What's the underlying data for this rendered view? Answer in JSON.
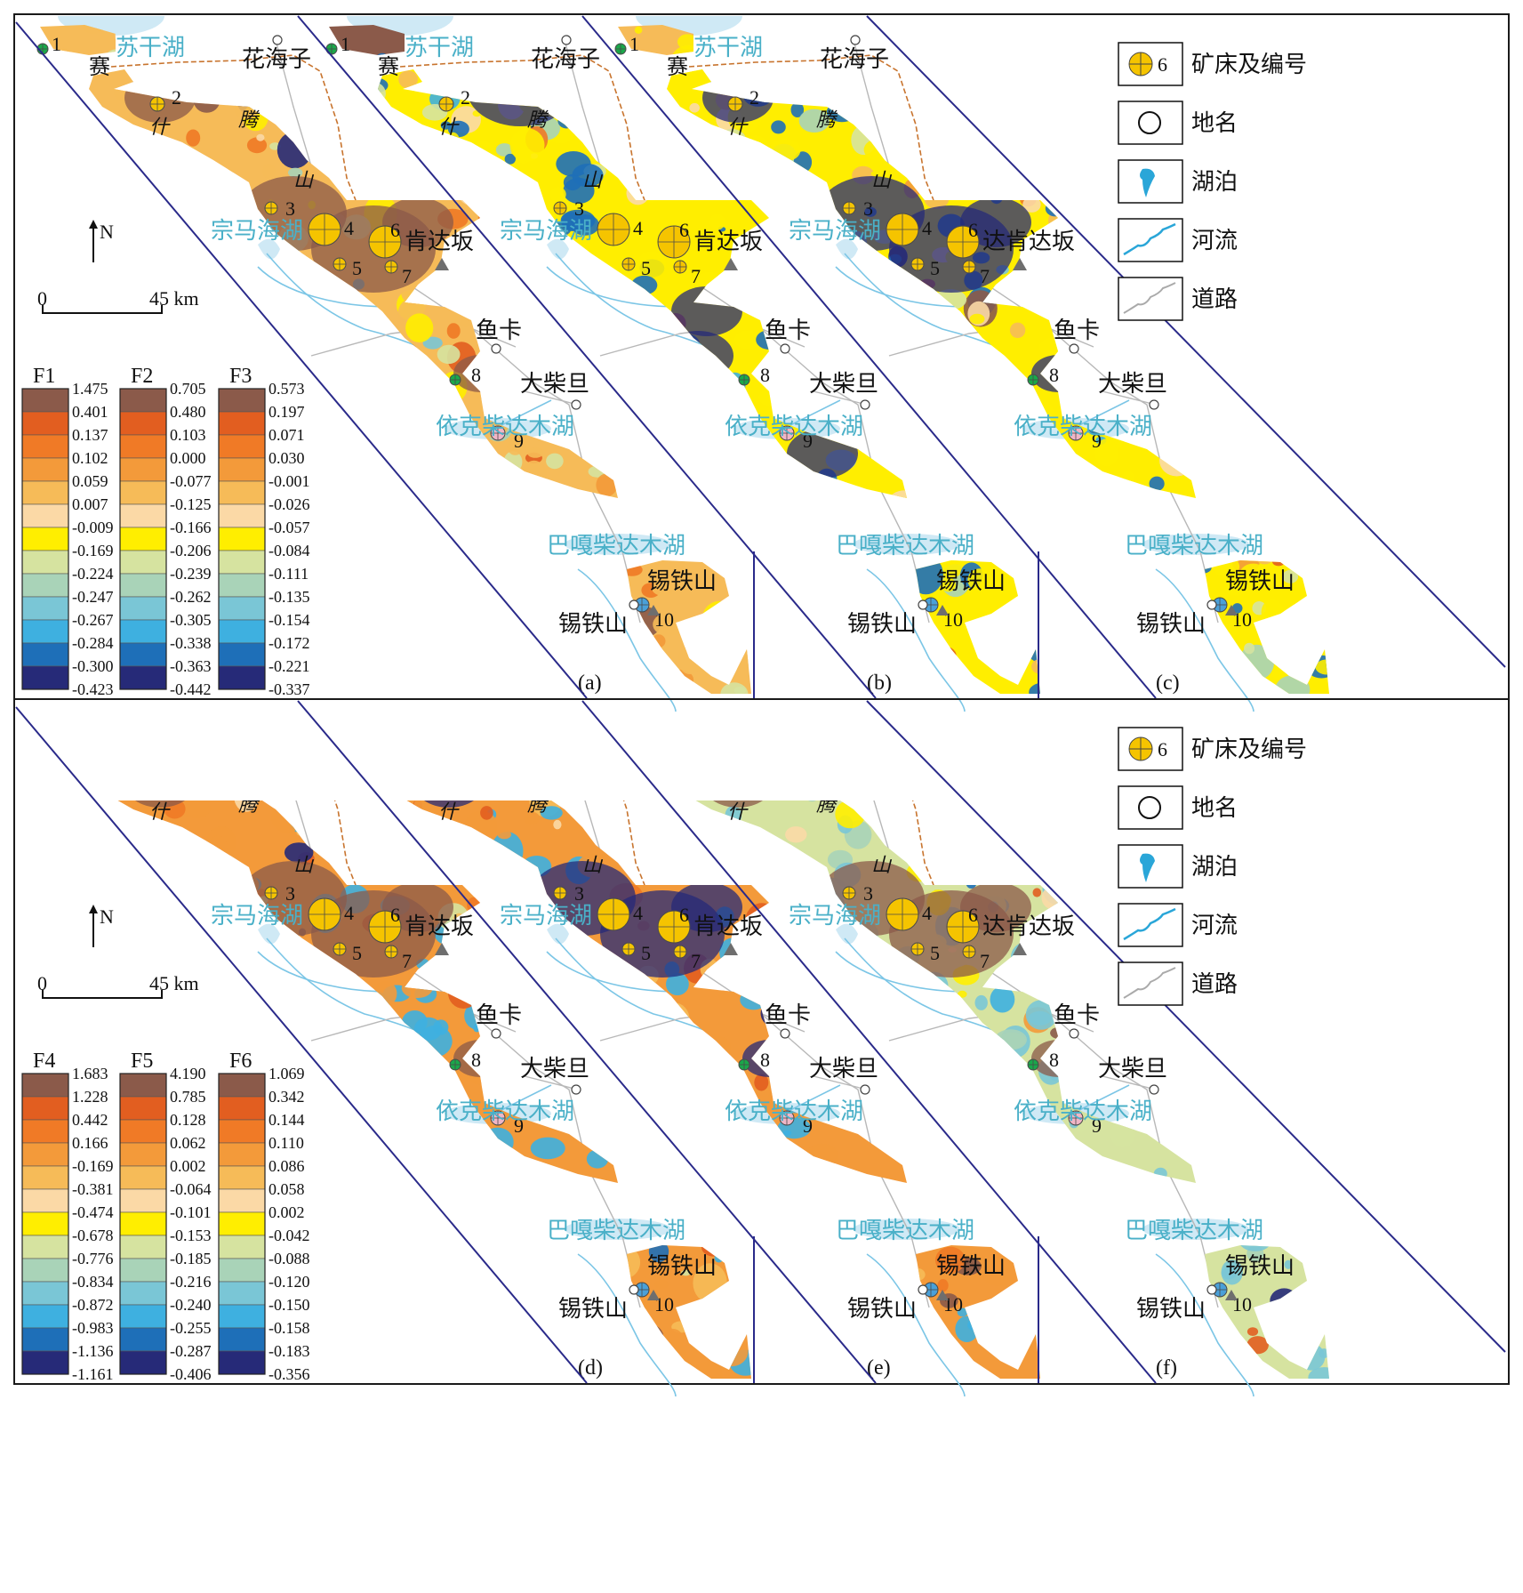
{
  "colors": {
    "frame": "#1a1a1a",
    "strip_border": "#2a2a8a",
    "lake_fill": "#cfe9f5",
    "lake_text": "#4ab0c8",
    "river": "#7cc6e6",
    "road": "#b8b8b8",
    "boundary": "#c8742e",
    "deposit": "#f5c400",
    "ramp": [
      "#8b5a4a",
      "#e25e20",
      "#f07a26",
      "#f39a3a",
      "#f6bb58",
      "#fbd9a6",
      "#ffee00",
      "#d6e3a0",
      "#a9d3b8",
      "#7ac6d6",
      "#3eb0e0",
      "#1e6fb8",
      "#262a78"
    ]
  },
  "top_panel": {
    "panels": [
      {
        "label": "(a)",
        "variant": 1,
        "place_tengxian_lake": "宗马海湖",
        "kenda": "肯达坂"
      },
      {
        "label": "(b)",
        "variant": 2,
        "place_tengxian_lake": "宗马海湖",
        "kenda": "肯达坂"
      },
      {
        "label": "(c)",
        "variant": 3,
        "place_tengxian_lake": "宗马海湖",
        "kenda": "达肯达坂"
      }
    ],
    "legends": [
      {
        "title": "F1",
        "values": [
          "1.475",
          "0.401",
          "0.137",
          "0.102",
          "0.059",
          "0.007",
          "-0.009",
          "-0.169",
          "-0.224",
          "-0.247",
          "-0.267",
          "-0.284",
          "-0.300",
          "-0.423"
        ]
      },
      {
        "title": "F2",
        "values": [
          "0.705",
          "0.480",
          "0.103",
          "0.000",
          "-0.077",
          "-0.125",
          "-0.166",
          "-0.206",
          "-0.239",
          "-0.262",
          "-0.305",
          "-0.338",
          "-0.363",
          "-0.442"
        ]
      },
      {
        "title": "F3",
        "values": [
          "0.573",
          "0.197",
          "0.071",
          "0.030",
          "-0.001",
          "-0.026",
          "-0.057",
          "-0.084",
          "-0.111",
          "-0.135",
          "-0.154",
          "-0.172",
          "-0.221",
          "-0.337"
        ]
      }
    ]
  },
  "bottom_panel": {
    "panels": [
      {
        "label": "(d)",
        "variant": 4,
        "place_tengxian_lake": "宗马海湖",
        "kenda": "肯达坂"
      },
      {
        "label": "(e)",
        "variant": 5,
        "place_tengxian_lake": "宗马海湖",
        "kenda": "肯达坂"
      },
      {
        "label": "(f)",
        "variant": 6,
        "place_tengxian_lake": "宗马海湖",
        "kenda": "达肯达坂"
      }
    ],
    "legends": [
      {
        "title": "F4",
        "values": [
          "1.683",
          "1.228",
          "0.442",
          "0.166",
          "-0.169",
          "-0.381",
          "-0.474",
          "-0.678",
          "-0.776",
          "-0.834",
          "-0.872",
          "-0.983",
          "-1.136",
          "-1.161"
        ]
      },
      {
        "title": "F5",
        "values": [
          "4.190",
          "0.785",
          "0.128",
          "0.062",
          "0.002",
          "-0.064",
          "-0.101",
          "-0.153",
          "-0.185",
          "-0.216",
          "-0.240",
          "-0.255",
          "-0.287",
          "-0.406"
        ]
      },
      {
        "title": "F6",
        "values": [
          "1.069",
          "0.342",
          "0.144",
          "0.110",
          "0.086",
          "0.058",
          "0.002",
          "-0.042",
          "-0.088",
          "-0.120",
          "-0.150",
          "-0.158",
          "-0.183",
          "-0.356"
        ]
      }
    ]
  },
  "map_labels": {
    "sugan_lake": "苏干湖",
    "huahaizi": "花海子",
    "sai": "赛",
    "shi": "什",
    "teng": "腾",
    "shan": "山",
    "yuka": "鱼卡",
    "dachaidan": "大柴旦",
    "yikechaidamu_lake": "依克柴达木湖",
    "bagachaidamu_lake": "巴嘎柴达木湖",
    "xitieshan": "锡铁山"
  },
  "deposit_numbers": [
    "1",
    "2",
    "3",
    "4",
    "5",
    "6",
    "7",
    "8",
    "9",
    "10"
  ],
  "north_label": "N",
  "scale": {
    "zero": "0",
    "distance": "45 km"
  },
  "map_legend": {
    "items": [
      {
        "symbol": "deposit-icon",
        "number": "6",
        "label": "矿床及编号"
      },
      {
        "symbol": "place-circle-icon",
        "label": "地名"
      },
      {
        "symbol": "lake-icon",
        "label": "湖泊"
      },
      {
        "symbol": "river-icon",
        "label": "河流"
      },
      {
        "symbol": "road-icon",
        "label": "道路"
      }
    ]
  }
}
